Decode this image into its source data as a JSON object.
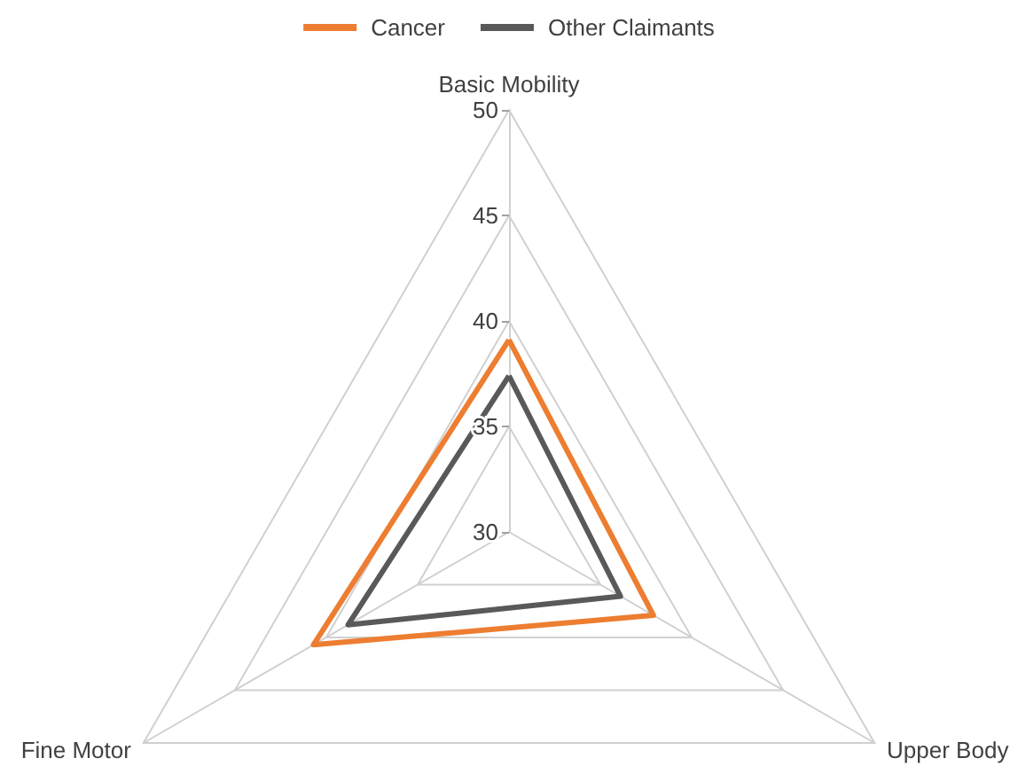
{
  "chart_data": {
    "type": "radar",
    "categories": [
      "Basic Mobility",
      "Upper Body",
      "Fine Motor"
    ],
    "series": [
      {
        "name": "Cancer",
        "color": "#ed7d31",
        "values": [
          39.1,
          37.9,
          40.7
        ]
      },
      {
        "name": "Other Claimants",
        "color": "#595959",
        "values": [
          37.4,
          36.1,
          38.8
        ]
      }
    ],
    "ylim": [
      30,
      50
    ],
    "yticks": [
      30,
      35,
      40,
      45,
      50
    ],
    "legend": "top",
    "grid": true,
    "marker": "none"
  }
}
